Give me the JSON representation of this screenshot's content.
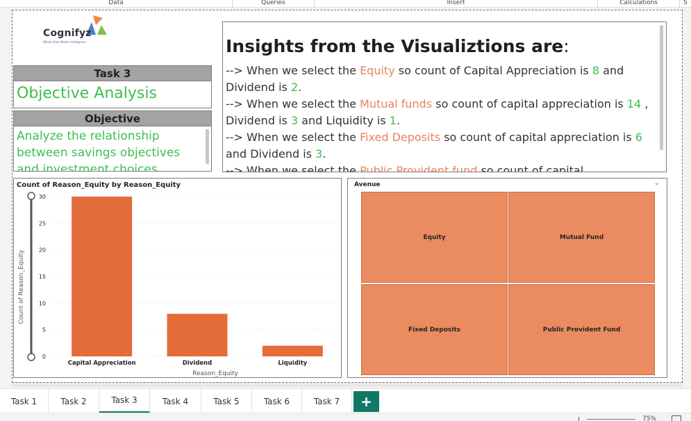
{
  "ribbon": {
    "groups": [
      "Data",
      "Queries",
      "Insert",
      "Calculations",
      "S"
    ]
  },
  "logo": {
    "name": "Cognifyz",
    "tagline": "Where Data Meets Intelligence"
  },
  "task_card": {
    "header": "Task 3",
    "title": "Objective Analysis"
  },
  "objective_card": {
    "header": "Objective",
    "text": "Analyze the relationship between savings objectives and investment choices."
  },
  "insights": {
    "title": "Insights  from the Visualiztions are",
    "colon": ":",
    "lines": [
      {
        "prefix": "--> When we select the ",
        "avenue": "Equity",
        "mid1": " so count of Capital Appreciation is ",
        "n1": "8",
        "mid2": " and Dividend is ",
        "n2": "2",
        "end": "."
      },
      {
        "prefix": "--> When we select the ",
        "avenue": "Mutual funds",
        "mid1": " so count of capital appreciation is ",
        "n1": "14",
        "mid2": " , Dividend is ",
        "n2": "3",
        "mid3": " and Liquidity is ",
        "n3": "1",
        "end": "."
      },
      {
        "prefix": "--> When we select the ",
        "avenue": "Fixed Deposits",
        "mid1": " so count of capital appreciation is ",
        "n1": "6",
        "mid2": " and Dividend is ",
        "n2": "3",
        "end": "."
      },
      {
        "prefix": "--> When we select the ",
        "avenue": "Public Provident fund",
        "mid1": " so count of capital Appreciation",
        "end": ""
      }
    ]
  },
  "bar_chart": {
    "title": "Count of Reason_Equity by Reason_Equity",
    "colors": {
      "bar": "#e46c3a",
      "grid": "#e6e6e6"
    }
  },
  "chart_data": {
    "type": "bar",
    "title": "Count of Reason_Equity by Reason_Equity",
    "xlabel": "Reason_Equity",
    "ylabel": "Count of Reason_Equity",
    "categories": [
      "Capital Appreciation",
      "Dividend",
      "Liquidity"
    ],
    "values": [
      30,
      8,
      2
    ],
    "yticks": [
      0,
      5,
      10,
      15,
      20,
      25,
      30
    ],
    "ylim": [
      0,
      30
    ],
    "grid": true
  },
  "treemap": {
    "title": "Avenue",
    "tiles": [
      "Equity",
      "Mutual Fund",
      "Fixed Deposits",
      "Public Provident Fund"
    ],
    "color": "#ea8b60"
  },
  "tabs": {
    "items": [
      "Task 1",
      "Task 2",
      "Task 3",
      "Task 4",
      "Task 5",
      "Task 6",
      "Task 7"
    ],
    "active": "Task 3",
    "add": "+"
  },
  "status": {
    "zoom": "75%"
  }
}
